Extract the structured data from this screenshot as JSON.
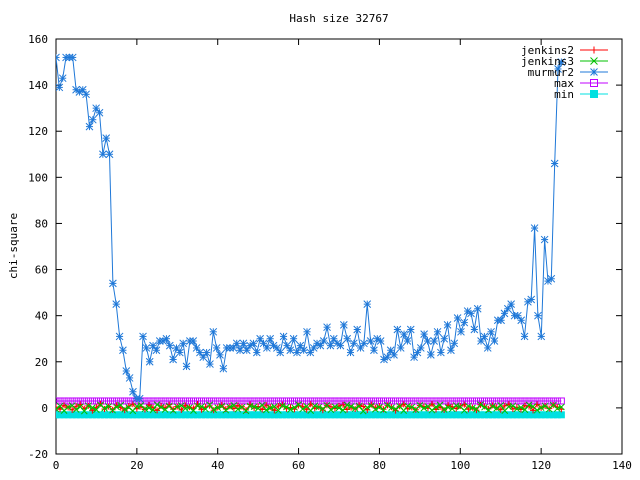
{
  "chart_data": {
    "type": "line",
    "title": "Hash size 32767",
    "xlabel": "",
    "ylabel": "chi-square",
    "xlim": [
      0,
      140
    ],
    "ylim": [
      -20,
      160
    ],
    "xticks": [
      0,
      20,
      40,
      60,
      80,
      100,
      120,
      140
    ],
    "yticks": [
      -20,
      0,
      20,
      40,
      60,
      80,
      100,
      120,
      140,
      160
    ],
    "grid": false,
    "legend_position": "top-right",
    "series": [
      {
        "name": "jenkins2",
        "color": "#ff0000",
        "marker": "plus",
        "x_start": 0,
        "x_end": 125,
        "values": [
          0.4,
          -0.6,
          1.1,
          0.2,
          -0.9,
          0.7,
          1.5,
          -0.3,
          0.9,
          -1.2,
          0.3,
          1.8,
          -0.5,
          0.6,
          -0.8,
          1.2,
          0.1,
          -1.0,
          0.8,
          1.6,
          -0.4,
          0.5,
          -0.7,
          1.3,
          0.2,
          -1.1,
          0.9,
          0.0,
          1.4,
          -0.6,
          0.6,
          -0.9,
          1.1,
          0.3,
          -0.2,
          1.7,
          -0.8,
          0.4,
          0.9,
          -1.0,
          0.2,
          1.3,
          -0.5,
          0.7,
          -0.3,
          1.0,
          0.5,
          -0.9,
          1.5,
          -0.1,
          0.6,
          -0.7,
          1.2,
          0.3,
          -1.1,
          0.8,
          1.4,
          -0.4,
          0.2,
          -0.6,
          1.0,
          0.7,
          -0.8,
          1.6,
          -0.2,
          0.4,
          -1.0,
          1.1,
          0.5,
          -0.3,
          0.9,
          1.3,
          -0.7,
          0.1,
          -0.5,
          1.2,
          0.6,
          -0.9,
          1.4,
          0.0,
          0.8,
          -0.6,
          1.1,
          0.3,
          -1.2,
          0.7,
          1.5,
          -0.4,
          0.2,
          -0.8,
          1.0,
          0.6,
          -0.2,
          1.7,
          -0.7,
          0.4,
          -0.9,
          1.2,
          0.5,
          -0.3,
          0.8,
          1.4,
          -0.6,
          0.1,
          -1.0,
          1.3,
          0.7,
          -0.4,
          1.1,
          0.2,
          -0.8,
          0.9,
          1.6,
          -0.5,
          0.3,
          -0.7,
          1.0,
          0.6,
          -1.1,
          1.5,
          0.0,
          0.8,
          -0.3,
          1.2,
          0.4,
          -0.6
        ]
      },
      {
        "name": "jenkins3",
        "color": "#00c000",
        "marker": "cross",
        "x_start": 0,
        "x_end": 125,
        "values": [
          -0.5,
          0.8,
          -1.2,
          0.3,
          1.0,
          -0.7,
          0.5,
          -1.4,
          0.9,
          0.1,
          -0.8,
          1.3,
          -0.2,
          0.6,
          -1.0,
          0.4,
          1.2,
          -0.6,
          0.2,
          -1.3,
          0.7,
          1.1,
          -0.4,
          0.0,
          -0.9,
          1.4,
          0.3,
          -0.7,
          0.8,
          -1.1,
          0.5,
          1.0,
          -0.3,
          0.2,
          -1.2,
          0.9,
          0.6,
          -0.5,
          1.3,
          -0.8,
          0.1,
          0.7,
          -1.0,
          0.4,
          1.1,
          -0.6,
          0.3,
          -1.3,
          0.8,
          0.5,
          -0.2,
          1.2,
          -0.9,
          0.0,
          0.6,
          -1.1,
          1.0,
          0.4,
          -0.7,
          0.2,
          1.4,
          -0.5,
          0.7,
          -1.2,
          0.9,
          0.3,
          -0.4,
          1.1,
          -0.8,
          0.5,
          0.0,
          -1.0,
          1.3,
          0.6,
          -0.3,
          0.8,
          -1.4,
          0.2,
          1.0,
          -0.6,
          0.4,
          -0.9,
          1.2,
          0.1,
          -0.5,
          0.7,
          -1.2,
          0.9,
          0.3,
          -0.8,
          1.1,
          -0.1,
          0.6,
          -1.0,
          0.4,
          1.3,
          -0.7,
          0.2,
          -0.4,
          1.0,
          0.5,
          -1.1,
          0.8,
          0.0,
          -0.6,
          1.4,
          0.3,
          -0.9,
          0.7,
          -0.2,
          1.1,
          -1.2,
          0.5,
          0.9,
          -0.4,
          0.2,
          -0.8,
          1.3,
          0.6,
          -1.0,
          0.1,
          0.8,
          -0.5,
          1.2,
          -0.3,
          0.4
        ]
      },
      {
        "name": "murmur2",
        "color": "#1f78d8",
        "marker": "star",
        "x_start": 0,
        "x_end": 125,
        "values": [
          152,
          139,
          143,
          152,
          152,
          152,
          138,
          137,
          138,
          136,
          122,
          125,
          130,
          128,
          110,
          117,
          110,
          54,
          45,
          31,
          25,
          16,
          13,
          7,
          4,
          4,
          31,
          26,
          20,
          27,
          25,
          29,
          29,
          30,
          27,
          21,
          26,
          24,
          28,
          18,
          29,
          29,
          26,
          24,
          22,
          24,
          19,
          33,
          26,
          23,
          17,
          26,
          26,
          26,
          28,
          25,
          28,
          25,
          27,
          28,
          24,
          30,
          28,
          26,
          30,
          27,
          26,
          24,
          31,
          27,
          25,
          30,
          24,
          27,
          25,
          33,
          24,
          26,
          28,
          27,
          29,
          35,
          27,
          30,
          28,
          27,
          36,
          30,
          24,
          28,
          34,
          26,
          28,
          45,
          29,
          25,
          30,
          29,
          21,
          22,
          25,
          23,
          34,
          26,
          32,
          29,
          34,
          22,
          24,
          26,
          32,
          29,
          23,
          29,
          33,
          24,
          30,
          36,
          25,
          28,
          39,
          33,
          37,
          42,
          41,
          34,
          43,
          29,
          31,
          26,
          33,
          29,
          38,
          38,
          41,
          43,
          45,
          40,
          40,
          38,
          31,
          46,
          47,
          78,
          40,
          31,
          73,
          55,
          56,
          106,
          147,
          150
        ]
      },
      {
        "name": "max",
        "color": "#c000ff",
        "marker": "open-square",
        "x_start": 0,
        "x_end": 125,
        "constant": 3
      },
      {
        "name": "min",
        "color": "#00e0e0",
        "marker": "filled-square",
        "x_start": 0,
        "x_end": 125,
        "constant": -3
      }
    ]
  }
}
